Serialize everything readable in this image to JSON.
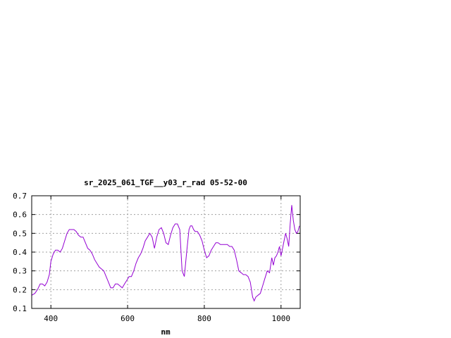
{
  "chart_data": {
    "type": "line",
    "title": "sr_2025_061_TGF__y03_r_rad 05-52-00",
    "xlabel": "nm",
    "ylabel": "",
    "xlim": [
      350,
      1050
    ],
    "ylim": [
      0.1,
      0.7
    ],
    "xticks": [
      400,
      600,
      800,
      1000
    ],
    "yticks": [
      0.1,
      0.2,
      0.3,
      0.4,
      0.5,
      0.6,
      0.7
    ],
    "xtick_labels": [
      "400",
      "600",
      "800",
      "1000"
    ],
    "ytick_labels": [
      "0.1",
      "0.2",
      "0.3",
      "0.4",
      "0.5",
      "0.6",
      "0.7"
    ],
    "grid": true,
    "legend": "none",
    "series": [
      {
        "color": "#9400d3",
        "x": [
          350,
          358,
          365,
          372,
          378,
          384,
          390,
          396,
          400,
          406,
          412,
          418,
          424,
          430,
          436,
          442,
          448,
          454,
          460,
          466,
          472,
          478,
          484,
          490,
          496,
          502,
          508,
          514,
          520,
          526,
          532,
          538,
          544,
          550,
          556,
          562,
          568,
          574,
          580,
          586,
          592,
          598,
          604,
          610,
          616,
          622,
          628,
          634,
          640,
          646,
          652,
          658,
          664,
          670,
          676,
          682,
          688,
          694,
          700,
          706,
          712,
          718,
          724,
          730,
          736,
          742,
          748,
          754,
          760,
          764,
          768,
          772,
          776,
          782,
          788,
          794,
          800,
          806,
          812,
          818,
          824,
          830,
          836,
          842,
          848,
          854,
          860,
          866,
          872,
          878,
          884,
          890,
          896,
          902,
          908,
          914,
          920,
          926,
          930,
          934,
          940,
          946,
          952,
          958,
          964,
          970,
          976,
          980,
          984,
          988,
          992,
          996,
          1000,
          1004,
          1008,
          1012,
          1016,
          1020,
          1024,
          1028,
          1032,
          1036,
          1040,
          1044,
          1048
        ],
        "y": [
          0.17,
          0.18,
          0.2,
          0.23,
          0.23,
          0.22,
          0.24,
          0.28,
          0.35,
          0.39,
          0.41,
          0.41,
          0.4,
          0.42,
          0.46,
          0.5,
          0.52,
          0.52,
          0.52,
          0.51,
          0.49,
          0.48,
          0.48,
          0.45,
          0.42,
          0.41,
          0.39,
          0.36,
          0.34,
          0.32,
          0.31,
          0.3,
          0.27,
          0.24,
          0.21,
          0.21,
          0.23,
          0.23,
          0.22,
          0.21,
          0.23,
          0.25,
          0.27,
          0.27,
          0.3,
          0.34,
          0.37,
          0.39,
          0.42,
          0.46,
          0.48,
          0.5,
          0.48,
          0.42,
          0.48,
          0.52,
          0.53,
          0.5,
          0.45,
          0.44,
          0.49,
          0.53,
          0.55,
          0.55,
          0.52,
          0.3,
          0.27,
          0.4,
          0.52,
          0.54,
          0.54,
          0.52,
          0.51,
          0.51,
          0.49,
          0.46,
          0.41,
          0.37,
          0.38,
          0.41,
          0.43,
          0.45,
          0.45,
          0.44,
          0.44,
          0.44,
          0.44,
          0.43,
          0.43,
          0.41,
          0.36,
          0.3,
          0.29,
          0.28,
          0.28,
          0.27,
          0.24,
          0.16,
          0.14,
          0.16,
          0.17,
          0.18,
          0.22,
          0.26,
          0.3,
          0.29,
          0.37,
          0.33,
          0.37,
          0.38,
          0.4,
          0.43,
          0.38,
          0.42,
          0.46,
          0.5,
          0.47,
          0.43,
          0.55,
          0.65,
          0.57,
          0.52,
          0.5,
          0.51,
          0.54
        ]
      }
    ]
  }
}
